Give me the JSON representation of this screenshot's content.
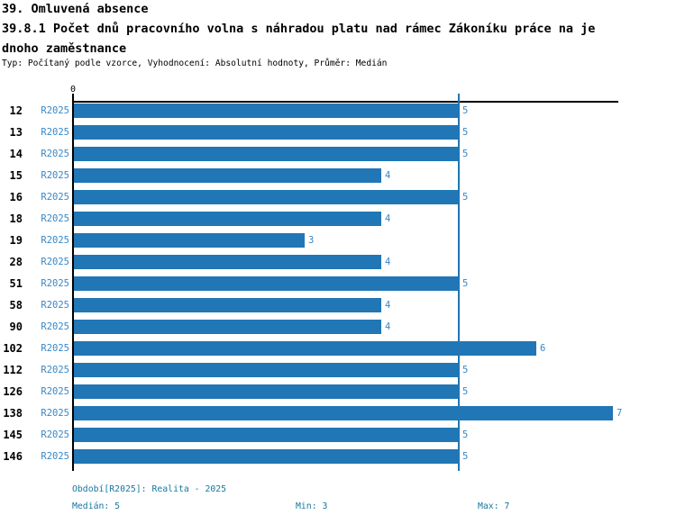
{
  "header": {
    "title": "39. Omluvená absence",
    "subtitle_line1": "39.8.1 Počet dnů pracovního volna s náhradou platu nad rámec Zákoníku práce na je",
    "subtitle_line2": "dnoho zaměstnance",
    "meta": "Typ: Počítaný podle vzorce, Vyhodnocení: Absolutní hodnoty, Průměr: Medián"
  },
  "chart_data": {
    "type": "bar",
    "orientation": "horizontal",
    "categories": [
      "12",
      "13",
      "14",
      "15",
      "16",
      "18",
      "19",
      "28",
      "51",
      "58",
      "90",
      "102",
      "112",
      "126",
      "138",
      "145",
      "146"
    ],
    "series": [
      {
        "name": "R2025",
        "values": [
          5,
          5,
          5,
          4,
          5,
          4,
          3,
          4,
          5,
          4,
          4,
          6,
          5,
          5,
          7,
          5,
          5
        ]
      }
    ],
    "row_period_label": "R2025",
    "value_labels": [
      "5",
      "5",
      "5",
      "4",
      "5",
      "4",
      "3",
      "4",
      "5",
      "4",
      "4",
      "6",
      "5",
      "5",
      "7",
      "5",
      "5"
    ],
    "axis_zero_tick_label": "0",
    "xlim": [
      0,
      7
    ],
    "median_reference_line": 5,
    "median": 5,
    "min": 3,
    "max": 7,
    "grid": false,
    "legend_position": "none",
    "bar_color": "#2176b5",
    "median_line_color": "#2176b5",
    "row_label_color": "#000000",
    "period_label_color": "#3987c5",
    "value_label_color": "#3987c5"
  },
  "footer": {
    "period_label": "Období[R2025]: Realita - 2025",
    "median_label": "Medián: 5",
    "min_label": "Min: 3",
    "max_label": "Max: 7",
    "text_color": "#17779e"
  }
}
